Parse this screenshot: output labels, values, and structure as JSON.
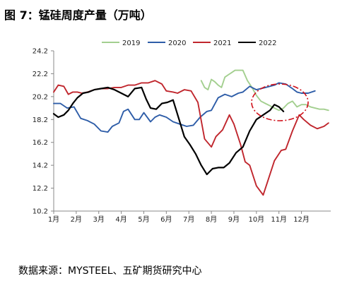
{
  "header": {
    "title": "图 7：锰硅周度产量（万吨）"
  },
  "footer": {
    "source": "数据来源：MYSTEEL、五矿期货研究中心"
  },
  "chart_data": {
    "type": "line",
    "title": "",
    "xlabel": "",
    "ylabel": "",
    "x_tick_labels": [
      "1月",
      "2月",
      "3月",
      "4月",
      "5月",
      "6月",
      "7月",
      "8月",
      "9月",
      "10月",
      "11月",
      "12月"
    ],
    "xlim": [
      1,
      13.3
    ],
    "ylim": [
      10.2,
      24.2
    ],
    "y_ticks": [
      10.2,
      12.2,
      14.2,
      16.2,
      18.2,
      20.2,
      22.2,
      24.2
    ],
    "y_tick_labels": [
      "10.2",
      "12.2",
      "14.2",
      "16.2",
      "18.2",
      "20.2",
      "22.2",
      "24.2"
    ],
    "grid": false,
    "legend_position": "top",
    "series": [
      {
        "name": "2019",
        "color": "#a3cf8f",
        "x": [
          7.55,
          7.7,
          7.85,
          8.0,
          8.15,
          8.3,
          8.45,
          8.6,
          8.75,
          8.9,
          9.05,
          9.2,
          9.4,
          9.6,
          9.8,
          10.0,
          10.2,
          10.4,
          10.6,
          10.8,
          11.0,
          11.2,
          11.4,
          11.6,
          11.8,
          12.0,
          12.2,
          12.4,
          12.6,
          12.8,
          13.0,
          13.2
        ],
        "y": [
          21.6,
          21.0,
          20.8,
          21.7,
          21.5,
          21.2,
          21.0,
          21.9,
          22.1,
          22.3,
          22.5,
          22.5,
          22.5,
          21.6,
          21.0,
          20.3,
          19.8,
          19.6,
          19.4,
          19.2,
          19.0,
          19.2,
          19.6,
          19.8,
          19.3,
          19.5,
          19.5,
          19.3,
          19.2,
          19.1,
          19.1,
          19.0
        ]
      },
      {
        "name": "2020",
        "color": "#2e5da8",
        "x": [
          1.0,
          1.3,
          1.6,
          1.9,
          2.2,
          2.5,
          2.8,
          3.1,
          3.4,
          3.6,
          3.9,
          4.1,
          4.3,
          4.6,
          4.8,
          5.0,
          5.3,
          5.5,
          5.7,
          6.0,
          6.3,
          6.6,
          6.9,
          7.2,
          7.5,
          7.8,
          8.0,
          8.3,
          8.6,
          8.9,
          9.2,
          9.4,
          9.7,
          10.0,
          10.4,
          10.8,
          11.0,
          11.3,
          11.6,
          11.8,
          12.0,
          12.3,
          12.6
        ],
        "y": [
          19.6,
          19.6,
          19.2,
          19.3,
          18.3,
          18.1,
          17.8,
          17.2,
          17.1,
          17.6,
          17.9,
          18.9,
          19.1,
          18.2,
          18.2,
          18.8,
          18.0,
          18.4,
          18.6,
          18.4,
          18.0,
          17.8,
          17.6,
          17.7,
          18.4,
          18.9,
          19.0,
          20.1,
          20.4,
          20.2,
          20.5,
          20.6,
          21.1,
          20.8,
          21.0,
          21.2,
          21.4,
          21.3,
          20.9,
          20.6,
          20.5,
          20.5,
          20.7
        ]
      },
      {
        "name": "2021",
        "color": "#c0262d",
        "x": [
          1.0,
          1.2,
          1.45,
          1.65,
          1.85,
          2.05,
          2.25,
          2.5,
          2.8,
          3.1,
          3.4,
          3.7,
          4.0,
          4.3,
          4.6,
          4.9,
          5.2,
          5.5,
          5.8,
          6.0,
          6.3,
          6.5,
          6.8,
          7.1,
          7.4,
          7.7,
          8.0,
          8.2,
          8.5,
          8.8,
          9.0,
          9.3,
          9.5,
          9.7,
          10.0,
          10.3,
          10.5,
          10.8,
          11.1,
          11.3,
          11.6,
          11.9,
          12.1,
          12.4,
          12.7,
          13.0,
          13.2
        ],
        "y": [
          20.6,
          21.2,
          21.1,
          20.4,
          20.6,
          20.6,
          20.5,
          20.6,
          20.8,
          20.9,
          20.9,
          21.0,
          21.0,
          21.2,
          21.2,
          21.4,
          21.4,
          21.6,
          21.3,
          20.7,
          20.6,
          20.5,
          20.8,
          20.7,
          19.7,
          16.5,
          15.8,
          16.7,
          17.3,
          18.6,
          17.8,
          16.0,
          14.5,
          14.2,
          12.4,
          11.6,
          12.8,
          14.6,
          15.5,
          15.6,
          17.2,
          18.6,
          18.2,
          17.7,
          17.4,
          17.6,
          17.9
        ]
      },
      {
        "name": "2022",
        "color": "#000000",
        "x": [
          1.0,
          1.2,
          1.45,
          1.65,
          1.85,
          2.05,
          2.3,
          2.55,
          2.8,
          3.1,
          3.4,
          3.7,
          4.0,
          4.3,
          4.6,
          4.9,
          5.1,
          5.3,
          5.55,
          5.8,
          6.05,
          6.3,
          6.55,
          6.8,
          7.05,
          7.3,
          7.55,
          7.8,
          8.05,
          8.3,
          8.55,
          8.8,
          9.1,
          9.4,
          9.7,
          10.0,
          10.3,
          10.6,
          10.8,
          11.0,
          11.2
        ],
        "y": [
          18.7,
          18.4,
          18.6,
          19.0,
          19.6,
          20.1,
          20.5,
          20.6,
          20.8,
          20.9,
          21.0,
          20.8,
          20.5,
          20.2,
          20.9,
          21.0,
          20.0,
          19.2,
          19.1,
          19.6,
          19.7,
          19.9,
          18.3,
          16.7,
          16.0,
          15.2,
          14.2,
          13.4,
          13.9,
          14.0,
          14.0,
          14.4,
          15.3,
          15.8,
          17.2,
          18.2,
          18.6,
          19.0,
          19.5,
          19.3,
          18.9
        ]
      }
    ]
  }
}
